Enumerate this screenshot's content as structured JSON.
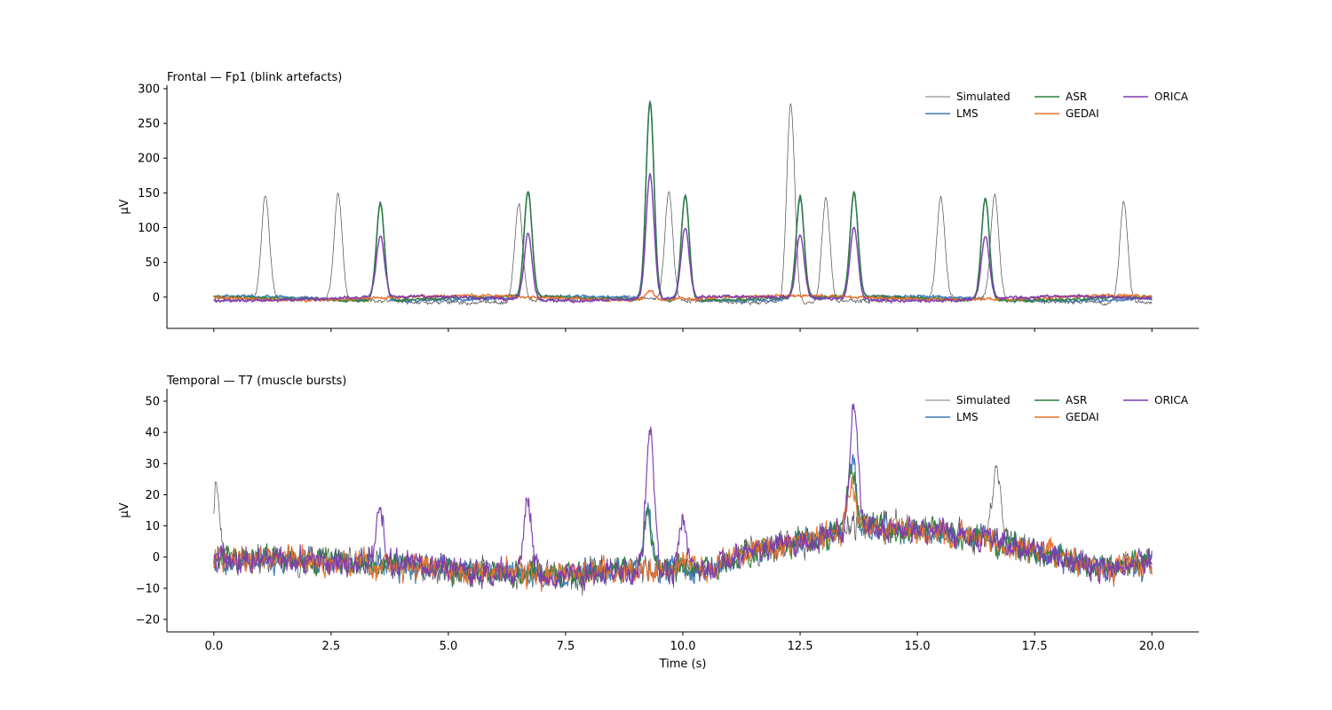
{
  "chart_data": [
    {
      "type": "line",
      "title": "Frontal — Fp1 (blink artefacts)",
      "xlabel": "",
      "ylabel": "µV",
      "xlim": [
        -1.0,
        21.0
      ],
      "ylim": [
        -45,
        305
      ],
      "xticks": [
        0.0,
        2.5,
        5.0,
        7.5,
        10.0,
        12.5,
        15.0,
        17.5,
        20.0
      ],
      "xtick_labels_visible": false,
      "yticks": [
        0,
        50,
        100,
        150,
        200,
        250,
        300
      ],
      "ytick_labels": [
        "0",
        "50",
        "100",
        "150",
        "200",
        "250",
        "300"
      ],
      "grid": false,
      "legend": "top-right",
      "baseline": {
        "Simulated": {
          "offset": -5,
          "amp": 6
        },
        "LMS": {
          "offset": -2,
          "amp": 4
        },
        "ASR": {
          "offset": -2,
          "amp": 4
        },
        "GEDAI": {
          "offset": -1,
          "amp": 4
        },
        "ORICA": {
          "offset": -2,
          "amp": 4
        }
      },
      "series": [
        {
          "name": "Simulated",
          "color": "#4d4d4d",
          "width": 0.7,
          "peaks": [
            [
              1.1,
              150
            ],
            [
              2.65,
              150
            ],
            [
              6.5,
              140
            ],
            [
              9.7,
              155
            ],
            [
              12.3,
              285
            ],
            [
              13.05,
              150
            ],
            [
              15.5,
              145
            ],
            [
              16.65,
              150
            ],
            [
              19.4,
              145
            ]
          ]
        },
        {
          "name": "LMS",
          "color": "#3a78b5",
          "width": 1.5,
          "peaks": [
            [
              3.55,
              140
            ],
            [
              6.7,
              152
            ],
            [
              9.3,
              285
            ],
            [
              10.05,
              150
            ],
            [
              12.5,
              145
            ],
            [
              13.65,
              150
            ],
            [
              16.45,
              145
            ]
          ]
        },
        {
          "name": "ASR",
          "color": "#2f7d3b",
          "width": 1.5,
          "peaks": [
            [
              3.55,
              140
            ],
            [
              6.7,
              152
            ],
            [
              9.3,
              285
            ],
            [
              10.05,
              150
            ],
            [
              12.5,
              145
            ],
            [
              13.65,
              150
            ],
            [
              16.45,
              145
            ]
          ]
        },
        {
          "name": "GEDAI",
          "color": "#e8702a",
          "width": 1.5,
          "peaks": [
            [
              9.3,
              12
            ]
          ]
        },
        {
          "name": "ORICA",
          "color": "#7d3ab0",
          "width": 1.5,
          "peaks": [
            [
              3.55,
              88
            ],
            [
              6.7,
              95
            ],
            [
              9.3,
              178
            ],
            [
              10.05,
              100
            ],
            [
              12.5,
              90
            ],
            [
              13.65,
              105
            ],
            [
              16.45,
              90
            ]
          ]
        }
      ]
    },
    {
      "type": "line",
      "title": "Temporal — T7 (muscle bursts)",
      "xlabel": "Time (s)",
      "ylabel": "µV",
      "xlim": [
        -1.0,
        21.0
      ],
      "ylim": [
        -24,
        54
      ],
      "xticks": [
        0.0,
        2.5,
        5.0,
        7.5,
        10.0,
        12.5,
        15.0,
        17.5,
        20.0
      ],
      "xtick_labels": [
        "0.0",
        "2.5",
        "5.0",
        "7.5",
        "10.0",
        "12.5",
        "15.0",
        "17.5",
        "20.0"
      ],
      "yticks": [
        -20,
        -10,
        0,
        10,
        20,
        30,
        40,
        50
      ],
      "ytick_labels": [
        "−20",
        "−10",
        "0",
        "10",
        "20",
        "30",
        "40",
        "50"
      ],
      "grid": false,
      "legend": "top-right",
      "baseline": {
        "Simulated": {
          "offset": 0,
          "amp": 8
        },
        "LMS": {
          "offset": 0,
          "amp": 7
        },
        "ASR": {
          "offset": 0,
          "amp": 7
        },
        "GEDAI": {
          "offset": 0,
          "amp": 7
        },
        "ORICA": {
          "offset": 0,
          "amp": 7
        }
      },
      "series": [
        {
          "name": "Simulated",
          "color": "#4d4d4d",
          "width": 0.7,
          "peaks": [
            [
              0.05,
              22
            ],
            [
              16.7,
              24
            ]
          ]
        },
        {
          "name": "LMS",
          "color": "#3a78b5",
          "width": 1.2,
          "peaks": [
            [
              9.25,
              18
            ],
            [
              13.6,
              22
            ]
          ]
        },
        {
          "name": "ASR",
          "color": "#2f7d3b",
          "width": 1.2,
          "peaks": [
            [
              9.25,
              18
            ],
            [
              13.6,
              22
            ]
          ]
        },
        {
          "name": "GEDAI",
          "color": "#e8702a",
          "width": 1.2,
          "peaks": [
            [
              13.6,
              15
            ]
          ]
        },
        {
          "name": "ORICA",
          "color": "#7d3ab0",
          "width": 1.2,
          "peaks": [
            [
              3.55,
              18
            ],
            [
              6.7,
              22
            ],
            [
              9.3,
              45
            ],
            [
              10.0,
              18
            ],
            [
              13.65,
              40
            ]
          ]
        }
      ],
      "trend": [
        [
          0,
          0
        ],
        [
          3,
          -2
        ],
        [
          5,
          -4
        ],
        [
          7.5,
          -6
        ],
        [
          8.5,
          -4
        ],
        [
          10.5,
          -4
        ],
        [
          11.5,
          2
        ],
        [
          12.5,
          5
        ],
        [
          14,
          10
        ],
        [
          16,
          7
        ],
        [
          17,
          4
        ],
        [
          18,
          0
        ],
        [
          19,
          -4
        ],
        [
          20,
          -2
        ]
      ]
    }
  ]
}
